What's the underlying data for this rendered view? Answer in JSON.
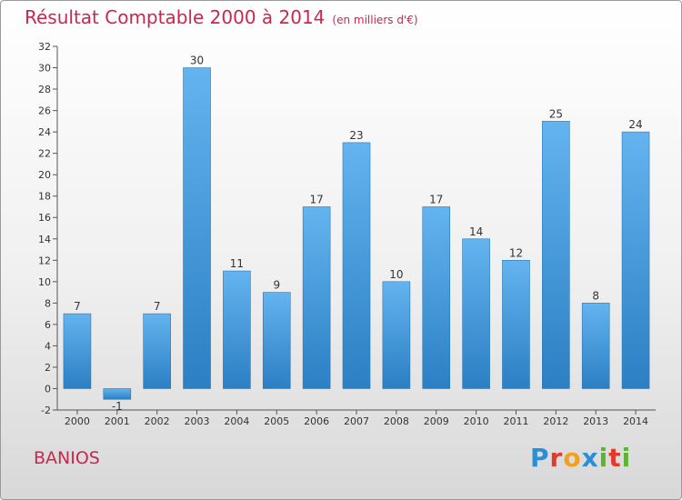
{
  "chart_data": {
    "type": "bar",
    "title": "Résultat Comptable 2000 à 2014",
    "subtitle": "(en milliers d'€)",
    "categories": [
      "2000",
      "2001",
      "2002",
      "2003",
      "2004",
      "2005",
      "2006",
      "2007",
      "2008",
      "2009",
      "2010",
      "2011",
      "2012",
      "2013",
      "2014"
    ],
    "values": [
      7,
      -1,
      7,
      30,
      11,
      9,
      17,
      23,
      10,
      17,
      14,
      12,
      25,
      8,
      24
    ],
    "data_labels": [
      "7",
      "-1",
      "7",
      "30",
      "11",
      "9",
      "17",
      "23",
      "10",
      "17",
      "14",
      "12",
      "25",
      "8",
      "24"
    ],
    "ylim": [
      -2,
      32
    ],
    "yticks": [
      -2,
      0,
      2,
      4,
      6,
      8,
      10,
      12,
      14,
      16,
      18,
      20,
      22,
      24,
      26,
      28,
      30,
      32
    ],
    "xlabel": "",
    "ylabel": "",
    "grid": false
  },
  "commune": "BANIOS",
  "logo": {
    "letters": [
      "P",
      "r",
      "o",
      "x",
      "i",
      "t",
      "i"
    ],
    "colors": [
      "#2b8fd6",
      "#e23a2b",
      "#f2a020",
      "#2b8fd6",
      "#5cb531",
      "#e23a2b",
      "#5cb531"
    ]
  },
  "colors": {
    "bar_light": "#63b4ef",
    "bar_dark": "#2b7fc3",
    "title": "#c8284e"
  }
}
